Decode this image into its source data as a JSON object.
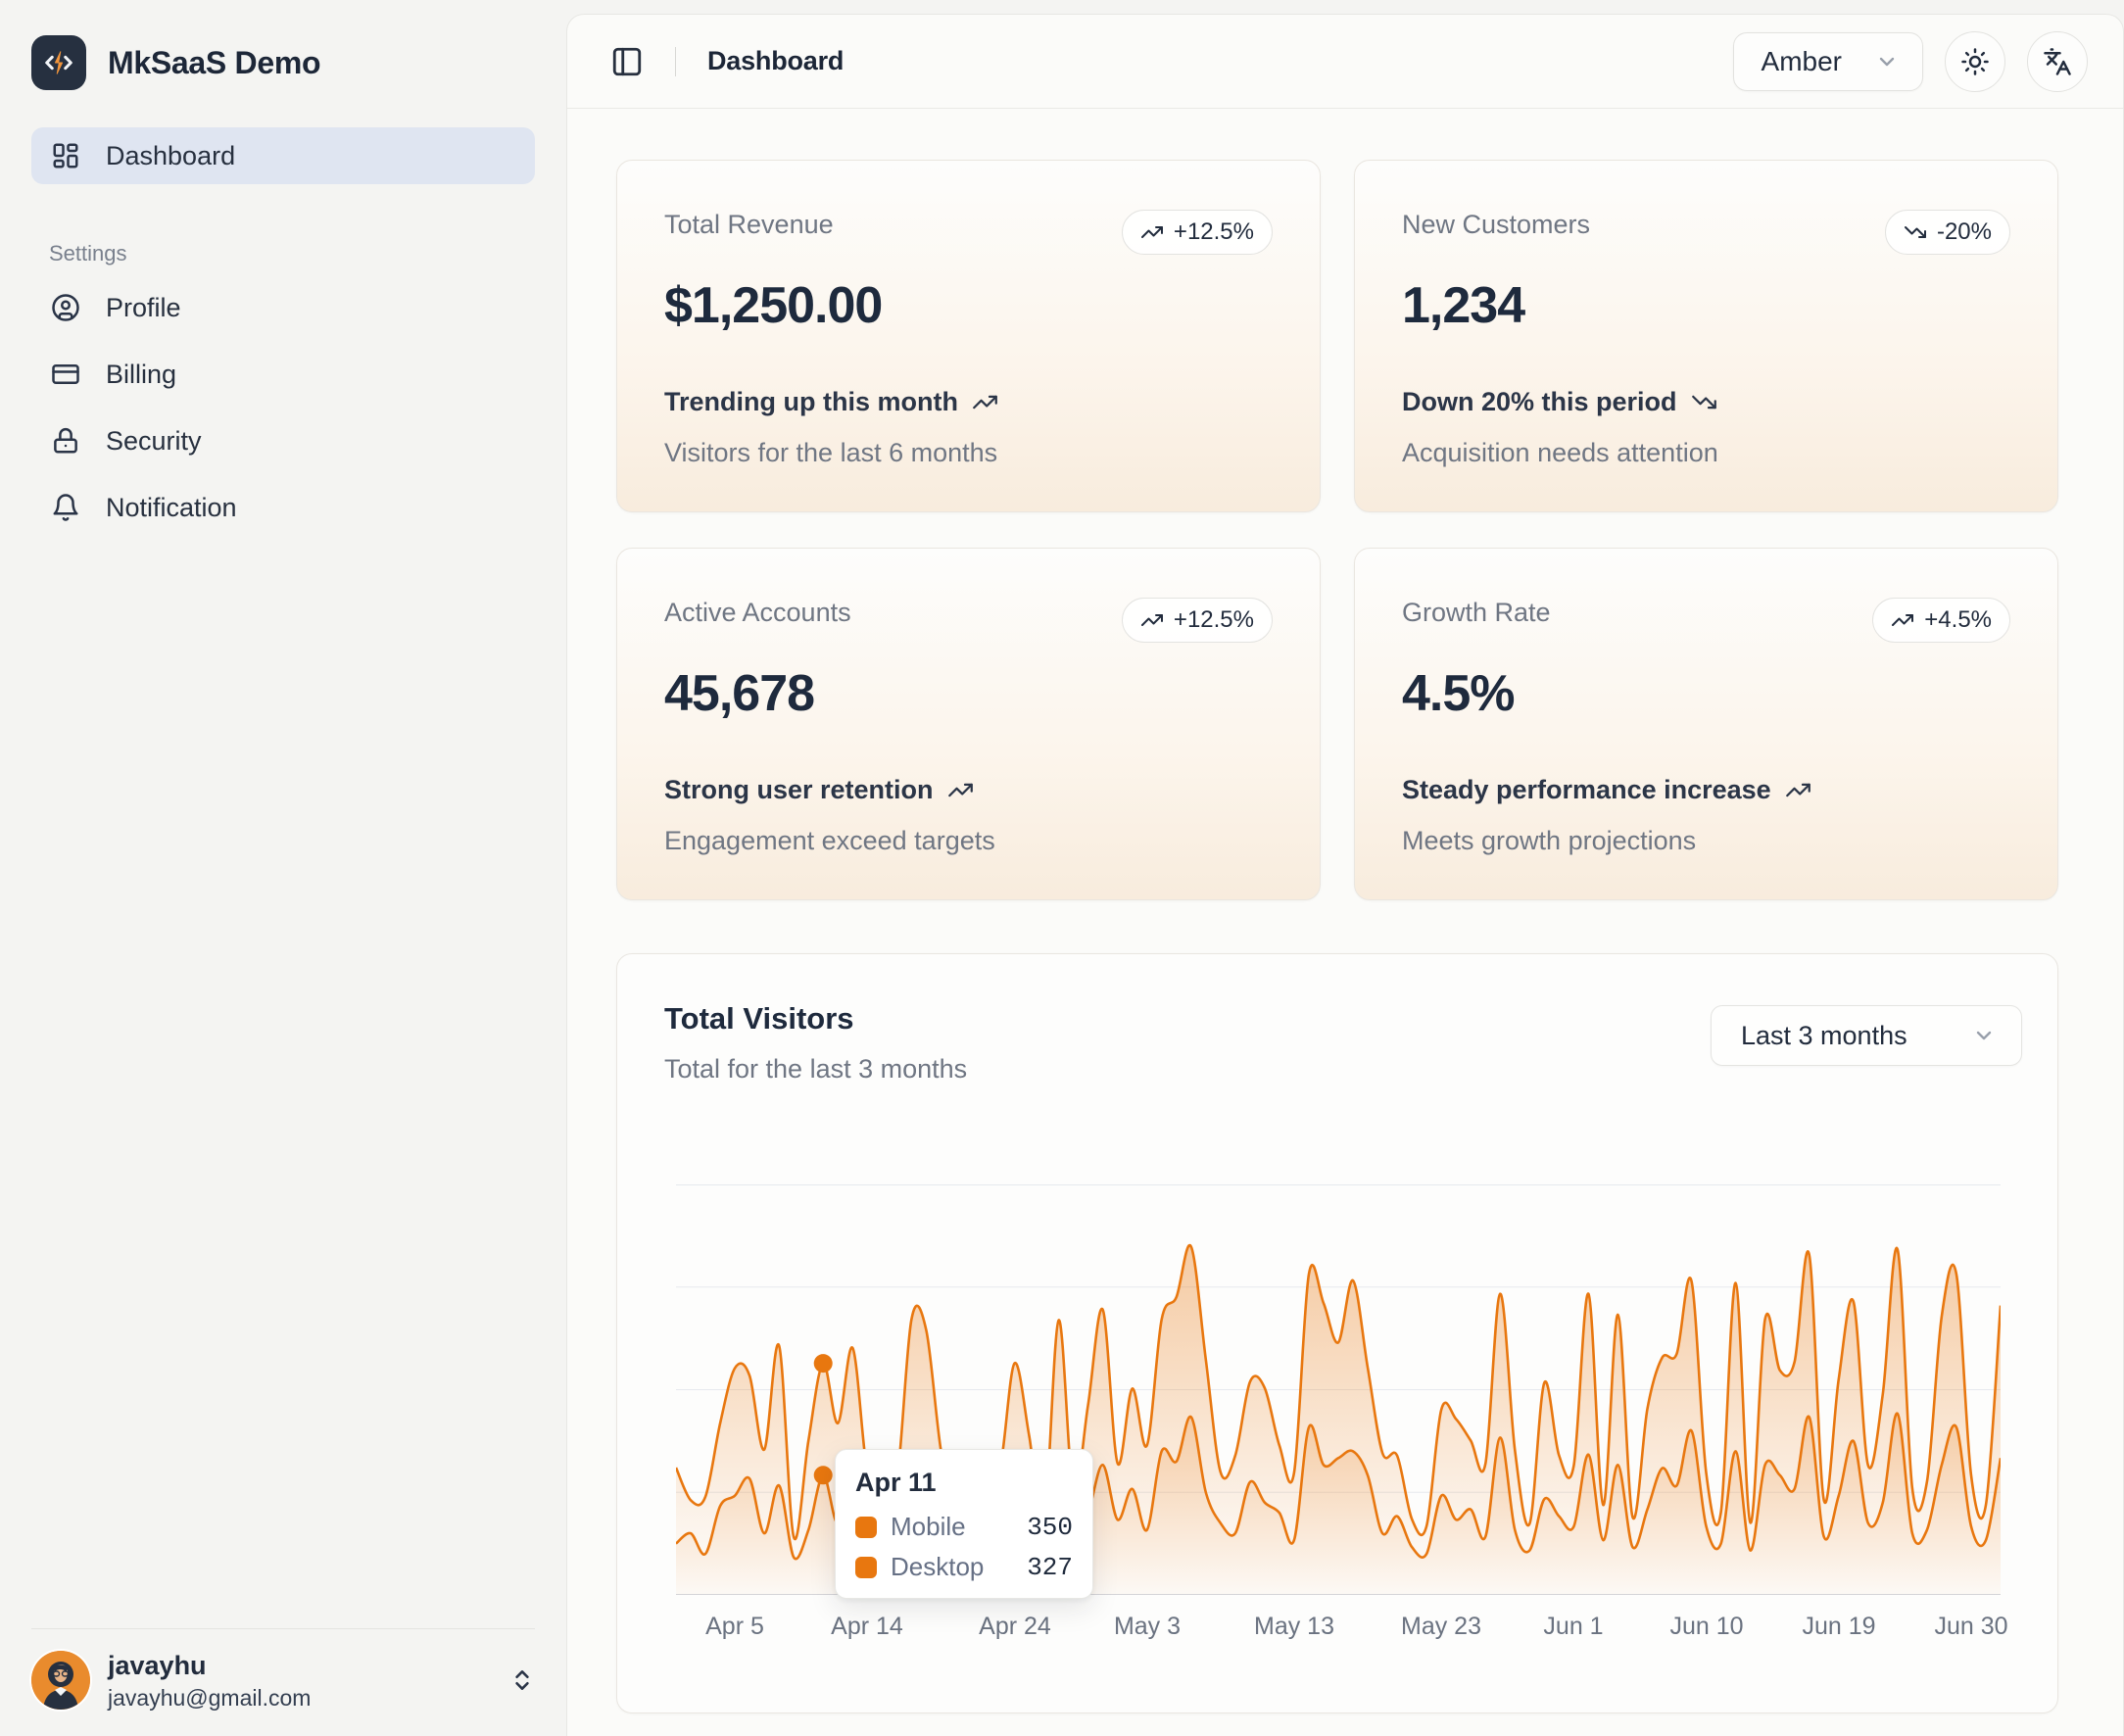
{
  "colors": {
    "accent": "#e8770f",
    "active_nav_bg": "#dfe5f1",
    "sidebar_bg": "#f4f4f2",
    "panel_bg": "#fbfbf9",
    "gridline": "#e6e9ee"
  },
  "sidebar": {
    "app_name": "MkSaaS Demo",
    "nav": [
      {
        "label": "Dashboard",
        "active": true
      }
    ],
    "settings_label": "Settings",
    "settings_items": [
      {
        "label": "Profile",
        "icon": "user-round-icon"
      },
      {
        "label": "Billing",
        "icon": "credit-card-icon"
      },
      {
        "label": "Security",
        "icon": "lock-icon"
      },
      {
        "label": "Notification",
        "icon": "bell-icon"
      }
    ],
    "user": {
      "name": "javayhu",
      "email": "javayhu@gmail.com"
    }
  },
  "header": {
    "title": "Dashboard",
    "theme_select_value": "Amber"
  },
  "stat_cards": [
    {
      "title": "Total Revenue",
      "badge": "+12.5%",
      "trend": "up",
      "value": "$1,250.00",
      "line1": "Trending up this month",
      "line2": "Visitors for the last 6 months"
    },
    {
      "title": "New Customers",
      "badge": "-20%",
      "trend": "down",
      "value": "1,234",
      "line1": "Down 20% this period",
      "line2": "Acquisition needs attention"
    },
    {
      "title": "Active Accounts",
      "badge": "+12.5%",
      "trend": "up",
      "value": "45,678",
      "line1": "Strong user retention",
      "line2": "Engagement exceed targets"
    },
    {
      "title": "Growth Rate",
      "badge": "+4.5%",
      "trend": "up",
      "value": "4.5%",
      "line1": "Steady performance increase",
      "line2": "Meets growth projections"
    }
  ],
  "chart_card": {
    "title": "Total Visitors",
    "subtitle": "Total for the last 3 months",
    "range_select_value": "Last 3 months",
    "tooltip": {
      "date": "Apr 11",
      "rows": [
        {
          "label": "Mobile",
          "value": "350"
        },
        {
          "label": "Desktop",
          "value": "327"
        }
      ]
    }
  },
  "chart_data": {
    "type": "area",
    "stacked": true,
    "title": "Total Visitors",
    "x_ticks": [
      "Apr 5",
      "Apr 14",
      "Apr 24",
      "May 3",
      "May 13",
      "May 23",
      "Jun 1",
      "Jun 10",
      "Jun 19",
      "Jun 30"
    ],
    "x_tick_indices": [
      4,
      13,
      23,
      32,
      42,
      52,
      61,
      70,
      79,
      90
    ],
    "highlight": {
      "index": 10,
      "date": "Apr 11",
      "mobile": 350,
      "desktop": 327
    },
    "ylim": [
      0,
      1200
    ],
    "grid_step": 300,
    "legend": "none",
    "series": [
      {
        "name": "Mobile",
        "values": [
          150,
          180,
          120,
          260,
          290,
          340,
          180,
          320,
          110,
          190,
          350,
          210,
          380,
          220,
          170,
          190,
          360,
          410,
          180,
          150,
          200,
          170,
          230,
          290,
          250,
          130,
          420,
          180,
          240,
          380,
          220,
          310,
          190,
          420,
          390,
          520,
          300,
          210,
          180,
          330,
          270,
          240,
          160,
          490,
          380,
          400,
          420,
          350,
          180,
          230,
          140,
          120,
          290,
          220,
          250,
          170,
          460,
          190,
          130,
          280,
          230,
          200,
          410,
          160,
          380,
          140,
          250,
          370,
          320,
          480,
          200,
          150,
          420,
          130,
          380,
          350,
          310,
          520,
          170,
          290,
          450,
          210,
          270,
          530,
          180,
          190,
          380,
          490,
          200,
          160,
          400
        ]
      },
      {
        "name": "Desktop",
        "values": [
          222,
          97,
          167,
          242,
          373,
          301,
          245,
          409,
          59,
          261,
          327,
          292,
          342,
          137,
          120,
          138,
          446,
          364,
          243,
          89,
          137,
          224,
          138,
          387,
          215,
          75,
          383,
          122,
          315,
          454,
          165,
          293,
          247,
          385,
          481,
          498,
          388,
          149,
          227,
          293,
          335,
          197,
          197,
          448,
          473,
          338,
          499,
          315,
          235,
          177,
          82,
          81,
          252,
          294,
          201,
          213,
          420,
          233,
          78,
          340,
          178,
          178,
          470,
          103,
          439,
          88,
          294,
          323,
          385,
          438,
          155,
          92,
          492,
          81,
          426,
          307,
          371,
          475,
          107,
          341,
          408,
          169,
          317,
          480,
          132,
          141,
          434,
          448,
          149,
          103,
          446
        ]
      }
    ]
  }
}
